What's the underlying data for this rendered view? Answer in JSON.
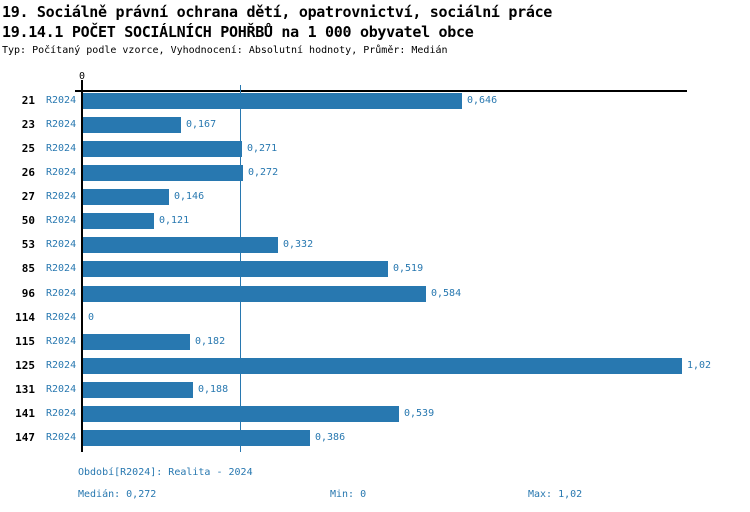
{
  "title_line1": "19. Sociálně právní ochrana dětí, opatrovnictví, sociální práce",
  "title_line2": "19.14.1 POČET SOCIÁLNÍCH POHŘBŮ na 1 000 obyvatel obce",
  "subtitle": "Typ: Počítaný podle vzorce, Vyhodnocení: Absolutní hodnoty, Průměr: Medián",
  "colors": {
    "bar": "#2878B0",
    "blue_text": "#2878B0",
    "axis": "#000000"
  },
  "chart_data": {
    "type": "bar",
    "orientation": "horizontal",
    "title": "19.14.1 POČET SOCIÁLNÍCH POHŘBŮ na 1 000 obyvatel obce",
    "axis_zero_label": "0",
    "series_label": "R2024",
    "categories": [
      "21",
      "23",
      "25",
      "26",
      "27",
      "50",
      "53",
      "85",
      "96",
      "114",
      "115",
      "125",
      "131",
      "141",
      "147"
    ],
    "values": [
      0.646,
      0.167,
      0.271,
      0.272,
      0.146,
      0.121,
      0.332,
      0.519,
      0.584,
      0,
      0.182,
      1.02,
      0.188,
      0.539,
      0.386
    ],
    "value_labels": [
      "0,646",
      "0,167",
      "0,271",
      "0,272",
      "0,146",
      "0,121",
      "0,332",
      "0,519",
      "0,584",
      "0",
      "0,182",
      "1,02",
      "0,188",
      "0,539",
      "0,386"
    ],
    "xlim": [
      0,
      1.02
    ],
    "median_line": 0.272,
    "grid": false,
    "legend": false
  },
  "footer": {
    "period": "Období[R2024]: Realita - 2024",
    "median": "Medián: 0,272",
    "min": "Min: 0",
    "max": "Max: 1,02"
  }
}
